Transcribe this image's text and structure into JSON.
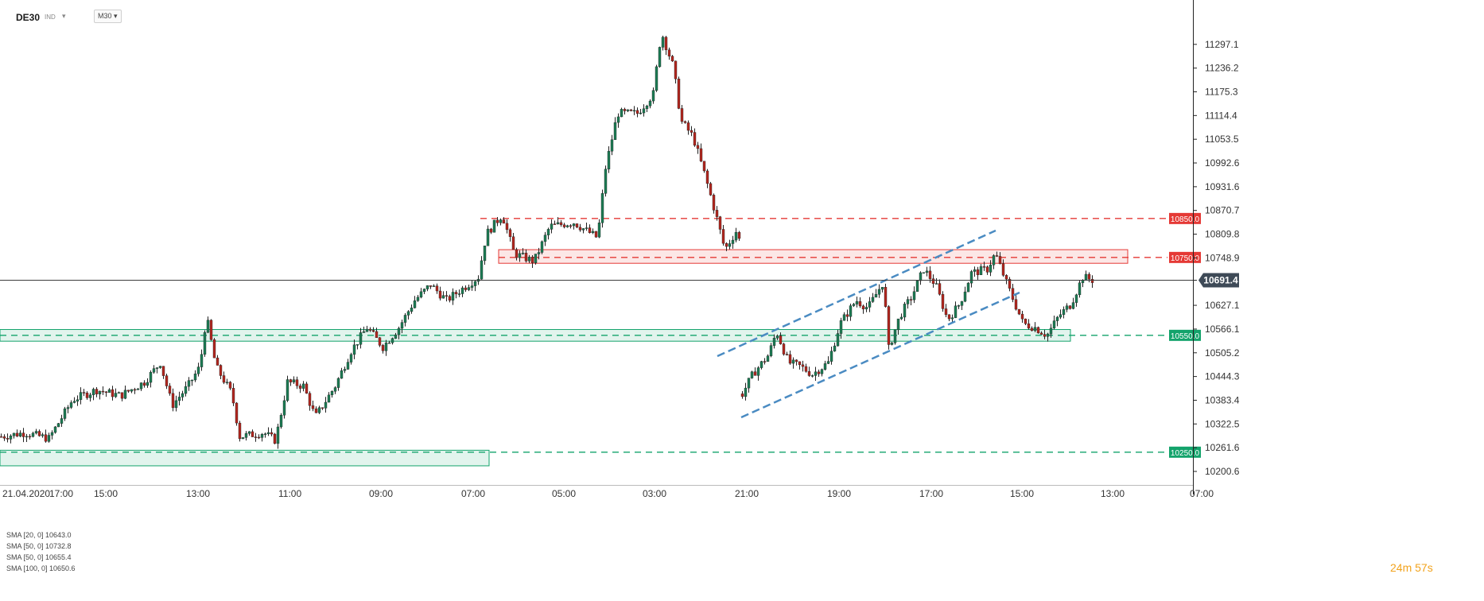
{
  "header": {
    "symbol": "DE30",
    "market_tag": "IND",
    "timeframe": "M30"
  },
  "chart_data": {
    "type": "candlestick",
    "ylim": [
      10170,
      11360
    ],
    "y_ticks": [
      11297.1,
      11236.2,
      11175.3,
      11114.4,
      11053.5,
      10992.6,
      10931.6,
      10870.7,
      10809.8,
      10748.9,
      10691.4,
      10627.1,
      10566.1,
      10505.2,
      10444.3,
      10383.4,
      10322.5,
      10261.6,
      10200.6
    ],
    "x_labels": [
      "21.04.2020",
      "17:00",
      "15:00",
      "13:00",
      "11:00",
      "09:00",
      "07:00",
      "05:00",
      "03:00",
      "21:00",
      "19:00",
      "17:00",
      "15:00",
      "13:00",
      "07:00"
    ],
    "current_price": "10691.4",
    "levels": [
      {
        "label": "10850.0",
        "value": 10850.0,
        "color": "#e53935"
      },
      {
        "label": "10750.0",
        "value": 10750.0,
        "color": "#e53935"
      },
      {
        "label": "10550.0",
        "value": 10550.0,
        "color": "#13a36b"
      },
      {
        "label": "10250.0",
        "value": 10250.0,
        "color": "#13a36b"
      }
    ],
    "zones": [
      {
        "name": "resistance-zone",
        "from": 10735,
        "to": 10770,
        "color": "#e53935"
      },
      {
        "name": "support-zone",
        "from": 10535,
        "to": 10565,
        "color": "#13a36b"
      },
      {
        "name": "lower-support-zone",
        "from": 10215,
        "to": 10255,
        "color": "#13a36b"
      }
    ],
    "price_path": [
      [
        0,
        10290
      ],
      [
        30,
        10300
      ],
      [
        60,
        10285
      ],
      [
        90,
        10385
      ],
      [
        120,
        10410
      ],
      [
        150,
        10395
      ],
      [
        180,
        10430
      ],
      [
        200,
        10480
      ],
      [
        215,
        10370
      ],
      [
        235,
        10420
      ],
      [
        250,
        10470
      ],
      [
        258,
        10600
      ],
      [
        270,
        10470
      ],
      [
        290,
        10400
      ],
      [
        300,
        10290
      ],
      [
        330,
        10300
      ],
      [
        345,
        10280
      ],
      [
        360,
        10430
      ],
      [
        380,
        10420
      ],
      [
        395,
        10340
      ],
      [
        420,
        10420
      ],
      [
        440,
        10510
      ],
      [
        460,
        10570
      ],
      [
        480,
        10520
      ],
      [
        500,
        10570
      ],
      [
        520,
        10640
      ],
      [
        540,
        10680
      ],
      [
        560,
        10640
      ],
      [
        580,
        10670
      ],
      [
        600,
        10700
      ],
      [
        610,
        10810
      ],
      [
        630,
        10860
      ],
      [
        645,
        10760
      ],
      [
        670,
        10740
      ],
      [
        690,
        10830
      ],
      [
        720,
        10840
      ],
      [
        750,
        10800
      ],
      [
        760,
        10980
      ],
      [
        775,
        11120
      ],
      [
        800,
        11120
      ],
      [
        820,
        11170
      ],
      [
        830,
        11330
      ],
      [
        845,
        11240
      ],
      [
        855,
        11100
      ],
      [
        870,
        11060
      ],
      [
        885,
        10960
      ],
      [
        900,
        10850
      ],
      [
        910,
        10770
      ],
      [
        925,
        10820
      ],
      [
        930,
        10780
      ]
    ],
    "price_path_2": [
      [
        932,
        10400
      ],
      [
        945,
        10450
      ],
      [
        965,
        10500
      ],
      [
        975,
        10560
      ],
      [
        990,
        10480
      ],
      [
        1005,
        10470
      ],
      [
        1020,
        10450
      ],
      [
        1040,
        10480
      ],
      [
        1055,
        10580
      ],
      [
        1075,
        10640
      ],
      [
        1090,
        10620
      ],
      [
        1110,
        10690
      ],
      [
        1115,
        10510
      ],
      [
        1130,
        10600
      ],
      [
        1145,
        10650
      ],
      [
        1160,
        10720
      ],
      [
        1175,
        10680
      ],
      [
        1190,
        10590
      ],
      [
        1205,
        10630
      ],
      [
        1220,
        10710
      ],
      [
        1240,
        10720
      ],
      [
        1250,
        10760
      ],
      [
        1265,
        10680
      ],
      [
        1285,
        10580
      ],
      [
        1300,
        10570
      ],
      [
        1315,
        10550
      ],
      [
        1330,
        10600
      ],
      [
        1345,
        10630
      ],
      [
        1360,
        10700
      ],
      [
        1375,
        10690
      ]
    ]
  },
  "legend": {
    "lines": [
      "SMA [20, 0]  10643.0",
      "SMA [50, 0]  10732.8",
      "SMA [50, 0]  10655.4",
      "SMA [100, 0]  10650.6"
    ]
  },
  "countdown": "24m 57s"
}
